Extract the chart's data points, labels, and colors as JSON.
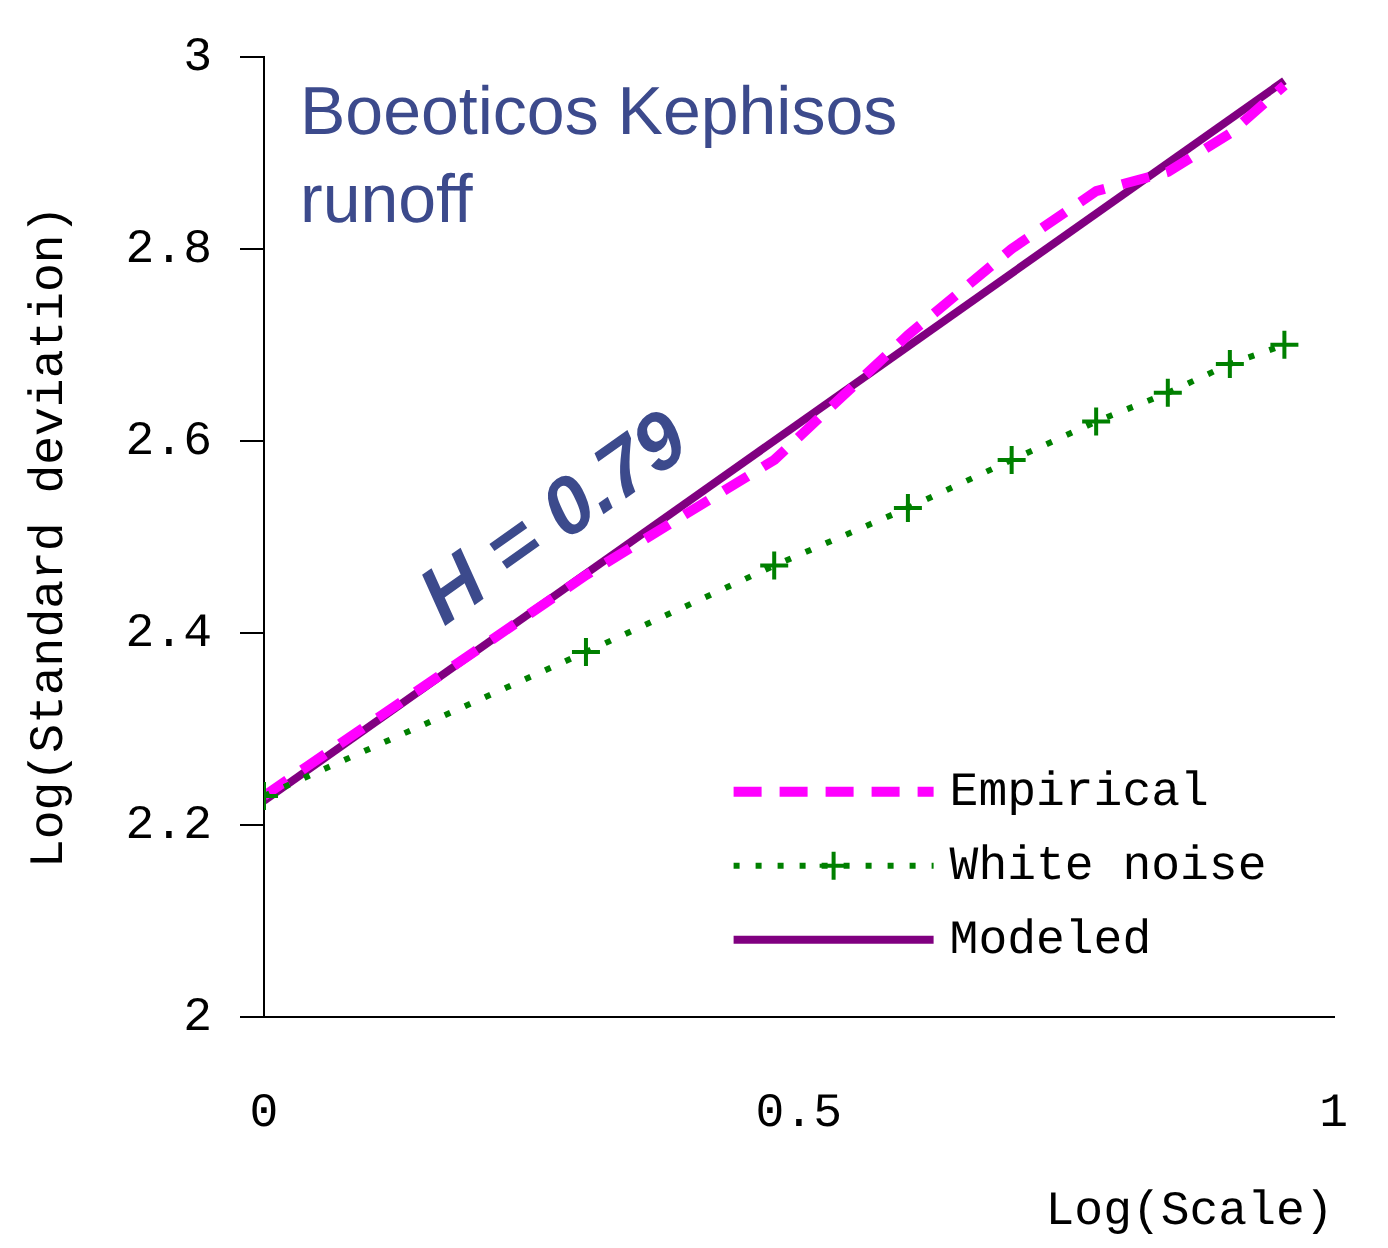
{
  "chart_data": {
    "type": "line",
    "title": "Boeoticos Kephisos runoff",
    "xlabel": "Log(Scale)",
    "ylabel": "Log(Standard deviation)",
    "annotations": [
      "H = 0.79"
    ],
    "xlim": [
      0,
      1
    ],
    "xticks": [
      0,
      0.5,
      1
    ],
    "ylim": [
      2,
      3
    ],
    "yticks": [
      2,
      2.2,
      2.4,
      2.6,
      2.8,
      3
    ],
    "grid": false,
    "legend": "bottom right",
    "series": [
      {
        "name": "Empirical",
        "color": "#ff00ff",
        "line_style": "dashed",
        "marker": "none",
        "x": [
          0,
          0.301,
          0.477,
          0.602,
          0.699,
          0.778,
          0.845,
          0.903,
          0.954
        ],
        "values": [
          2.23,
          2.46,
          2.58,
          2.71,
          2.8,
          2.86,
          2.88,
          2.92,
          2.97
        ]
      },
      {
        "name": "White noise",
        "color": "#008000",
        "line_style": "dotted",
        "marker": "cross",
        "x": [
          0,
          0.301,
          0.477,
          0.602,
          0.699,
          0.778,
          0.845,
          0.903,
          0.954
        ],
        "values": [
          2.23,
          2.38,
          2.47,
          2.53,
          2.58,
          2.62,
          2.65,
          2.68,
          2.7
        ]
      },
      {
        "name": "Modeled",
        "color": "#800080",
        "line_style": "solid",
        "marker": "none",
        "x": [
          0,
          0.954
        ],
        "values": [
          2.225,
          2.975
        ]
      }
    ]
  }
}
